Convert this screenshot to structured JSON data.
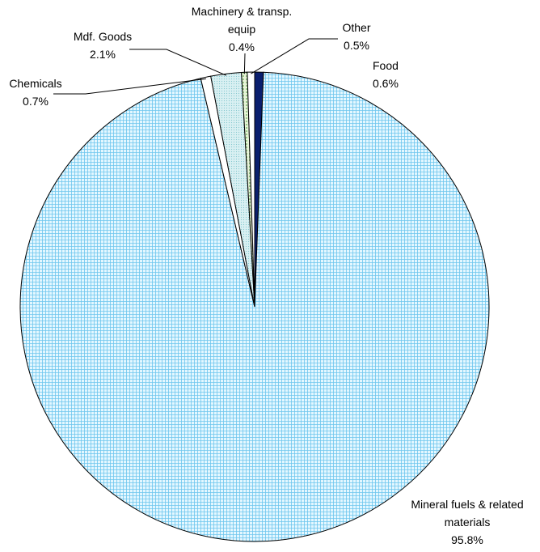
{
  "chart_data": {
    "type": "pie",
    "title": "",
    "slices": [
      {
        "name": "Food",
        "value": 0.6,
        "label": "Food",
        "pct": "0.6%",
        "color": "#0a1f6e"
      },
      {
        "name": "Mineral fuels & related materials",
        "value": 95.8,
        "label": "Mineral fuels & related materials",
        "pct": "95.8%",
        "color": "#ccf2ff"
      },
      {
        "name": "Chemicals",
        "value": 0.7,
        "label": "Chemicals",
        "pct": "0.7%",
        "color": "#ffffff"
      },
      {
        "name": "Mdf. Goods",
        "value": 2.1,
        "label": "Mdf. Goods",
        "pct": "2.1%",
        "color": "#d4eef2"
      },
      {
        "name": "Machinery & transp. equip",
        "value": 0.4,
        "label": "Machinery & transp. equip",
        "pct": "0.4%",
        "color": "#b8e0a8"
      },
      {
        "name": "Other",
        "value": 0.5,
        "label": "Other",
        "pct": "0.5%",
        "color": "#ffffff"
      }
    ],
    "start": "12 o'clock",
    "direction": "clockwise",
    "legend": "none"
  }
}
